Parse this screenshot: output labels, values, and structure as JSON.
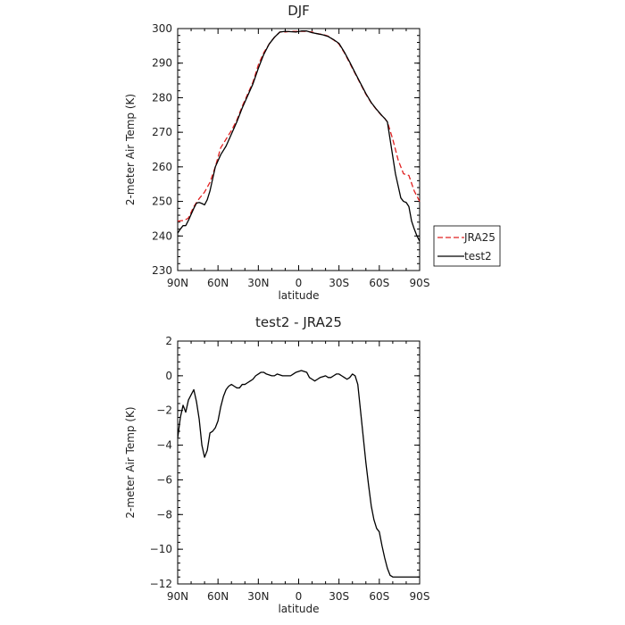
{
  "chart_data": [
    {
      "type": "line",
      "title": "DJF",
      "xlabel": "latitude",
      "ylabel": "2-meter Air Temp (K)",
      "xlim": [
        90,
        -90
      ],
      "ylim": [
        230,
        300
      ],
      "x_ticks": [
        90,
        60,
        30,
        0,
        -30,
        -60,
        -90
      ],
      "x_tick_labels": [
        "90N",
        "60N",
        "30N",
        "0",
        "30S",
        "60S",
        "90S"
      ],
      "y_ticks": [
        230,
        240,
        250,
        260,
        270,
        280,
        290,
        300
      ],
      "y_tick_labels": [
        "230",
        "240",
        "250",
        "260",
        "270",
        "280",
        "290",
        "300"
      ],
      "grid": false,
      "legend": "right",
      "series": [
        {
          "name": "JRA25",
          "color": "#e02020",
          "dash": "dashed",
          "x": [
            90,
            85,
            82,
            78,
            74,
            70,
            66,
            62,
            58,
            54,
            50,
            46,
            42,
            38,
            34,
            30,
            26,
            22,
            18,
            14,
            10,
            6,
            2,
            -2,
            -6,
            -10,
            -14,
            -18,
            -22,
            -26,
            -30,
            -34,
            -38,
            -42,
            -46,
            -50,
            -54,
            -58,
            -62,
            -64,
            -66,
            -70,
            -74,
            -78,
            -82,
            -86,
            -90
          ],
          "y": [
            244.3,
            244.5,
            245.2,
            248.5,
            250.8,
            252.7,
            255.5,
            260,
            265.5,
            268,
            270.5,
            273.5,
            277.5,
            281,
            284.5,
            289.5,
            293,
            295.5,
            297.5,
            299,
            299,
            299.2,
            299.2,
            299.2,
            299.2,
            299,
            298.5,
            298.3,
            297.8,
            296.7,
            295.5,
            293,
            290,
            287,
            284,
            281,
            278.5,
            276.5,
            274.7,
            274,
            273,
            268,
            262,
            258,
            257.5,
            253,
            250
          ]
        },
        {
          "name": "test2",
          "color": "#000000",
          "dash": "solid",
          "x": [
            90,
            88,
            86,
            84,
            82,
            78,
            76,
            74,
            72,
            70,
            68,
            66,
            62,
            58,
            54,
            50,
            46,
            42,
            38,
            34,
            30,
            26,
            22,
            18,
            14,
            10,
            6,
            2,
            -2,
            -6,
            -10,
            -14,
            -18,
            -22,
            -26,
            -30,
            -34,
            -38,
            -42,
            -46,
            -50,
            -54,
            -58,
            -62,
            -64,
            -66,
            -68,
            -70,
            -72,
            -74,
            -76,
            -78,
            -80,
            -82,
            -84,
            -86,
            -88,
            -90
          ],
          "y": [
            240.8,
            242,
            243,
            243,
            244.5,
            248,
            249.5,
            249.7,
            249.4,
            249,
            250.5,
            253,
            260,
            263.5,
            266,
            269.5,
            273,
            277,
            280.5,
            284,
            288.5,
            292.5,
            295.5,
            297.5,
            299,
            299.2,
            299.1,
            299,
            299.3,
            299.3,
            298.8,
            298.5,
            298.2,
            297.7,
            296.8,
            295.7,
            293.2,
            290.3,
            287.2,
            284.2,
            281.2,
            278.6,
            276.6,
            274.8,
            274,
            273,
            268,
            263,
            258,
            254.5,
            251,
            250,
            249.7,
            248.5,
            244.3,
            242,
            240,
            238.5
          ]
        }
      ]
    },
    {
      "type": "line",
      "title": "test2 - JRA25",
      "xlabel": "latitude",
      "ylabel": "2-meter Air Temp (K)",
      "xlim": [
        90,
        -90
      ],
      "ylim": [
        -12,
        2
      ],
      "x_ticks": [
        90,
        60,
        30,
        0,
        -30,
        -60,
        -90
      ],
      "x_tick_labels": [
        "90N",
        "60N",
        "30N",
        "0",
        "30S",
        "60S",
        "90S"
      ],
      "y_ticks": [
        -12,
        -10,
        -8,
        -6,
        -4,
        -2,
        0,
        2
      ],
      "y_tick_labels": [
        "−12",
        "−10",
        "−8",
        "−6",
        "−4",
        "−2",
        "0",
        "2"
      ],
      "grid": false,
      "series": [
        {
          "color": "#000000",
          "dash": "solid",
          "x": [
            90,
            88,
            86,
            84,
            82,
            80,
            78,
            76,
            74,
            72,
            70,
            68,
            66,
            64,
            62,
            60,
            58,
            56,
            54,
            52,
            50,
            48,
            46,
            44,
            42,
            40,
            38,
            36,
            34,
            32,
            30,
            28,
            26,
            24,
            22,
            20,
            18,
            16,
            14,
            12,
            10,
            8,
            6,
            4,
            2,
            0,
            -2,
            -4,
            -6,
            -8,
            -10,
            -12,
            -14,
            -16,
            -18,
            -20,
            -22,
            -24,
            -26,
            -28,
            -30,
            -32,
            -34,
            -36,
            -38,
            -40,
            -42,
            -44,
            -46,
            -48,
            -50,
            -52,
            -54,
            -56,
            -58,
            -60,
            -62,
            -64,
            -66,
            -68,
            -70,
            -72,
            -74,
            -76,
            -78,
            -80,
            -82,
            -84,
            -86,
            -88,
            -90
          ],
          "y": [
            -3.6,
            -2.4,
            -1.7,
            -2.1,
            -1.4,
            -1.1,
            -0.8,
            -1.5,
            -2.5,
            -4.0,
            -4.7,
            -4.3,
            -3.3,
            -3.2,
            -3.0,
            -2.6,
            -1.8,
            -1.2,
            -0.8,
            -0.6,
            -0.5,
            -0.6,
            -0.7,
            -0.7,
            -0.5,
            -0.5,
            -0.4,
            -0.3,
            -0.2,
            0.0,
            0.1,
            0.2,
            0.2,
            0.1,
            0.05,
            0.0,
            0.0,
            0.1,
            0.05,
            0.0,
            0.0,
            0.0,
            0.0,
            0.1,
            0.2,
            0.25,
            0.3,
            0.25,
            0.2,
            -0.1,
            -0.2,
            -0.3,
            -0.2,
            -0.1,
            -0.05,
            0.0,
            -0.1,
            -0.1,
            0.0,
            0.1,
            0.1,
            0.0,
            -0.1,
            -0.2,
            -0.1,
            0.1,
            0.0,
            -0.5,
            -2.0,
            -3.5,
            -5.0,
            -6.3,
            -7.5,
            -8.3,
            -8.8,
            -9.0,
            -9.8,
            -10.5,
            -11.1,
            -11.5,
            -11.6,
            -11.6,
            -11.6,
            -11.6,
            -11.6,
            -11.6,
            -11.6,
            -11.6,
            -11.6,
            -11.6,
            -11.6
          ]
        }
      ]
    }
  ]
}
